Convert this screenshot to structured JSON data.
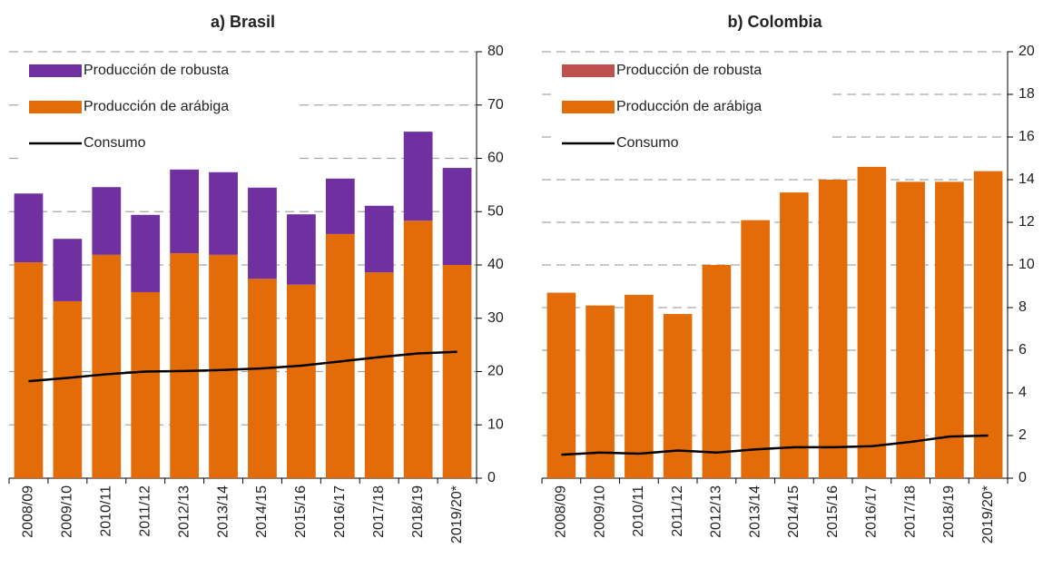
{
  "chart_data": [
    {
      "type": "bar",
      "title": "a) Brasil",
      "categories": [
        "2008/09",
        "2009/10",
        "2010/11",
        "2011/12",
        "2012/13",
        "2013/14",
        "2014/15",
        "2015/16",
        "2016/17",
        "2017/18",
        "2018/19",
        "2019/20*"
      ],
      "series": [
        {
          "name": "Producción de robusta",
          "color": "#7030a0",
          "values": [
            12.9,
            11.7,
            12.7,
            14.5,
            15.7,
            15.5,
            17.1,
            13.2,
            10.4,
            12.5,
            16.7,
            18.2
          ]
        },
        {
          "name": "Producción de arábiga",
          "color": "#e36c09",
          "values": [
            40.5,
            33.2,
            41.9,
            34.9,
            42.2,
            41.9,
            37.4,
            36.3,
            45.8,
            38.6,
            48.3,
            40.0
          ]
        },
        {
          "name": "Consumo",
          "type": "line",
          "color": "#000000",
          "values": [
            18.2,
            18.8,
            19.5,
            20.0,
            20.1,
            20.3,
            20.6,
            21.1,
            21.9,
            22.7,
            23.4,
            23.7
          ]
        }
      ],
      "ylim": [
        0,
        80
      ],
      "yticks": [
        0,
        10,
        20,
        30,
        40,
        50,
        60,
        70,
        80
      ],
      "grid": true,
      "legend": "top-left"
    },
    {
      "type": "bar",
      "title": "b) Colombia",
      "categories": [
        "2008/09",
        "2009/10",
        "2010/11",
        "2011/12",
        "2012/13",
        "2013/14",
        "2014/15",
        "2015/16",
        "2016/17",
        "2017/18",
        "2018/19",
        "2019/20*"
      ],
      "series": [
        {
          "name": "Producción de robusta",
          "color": "#c0504d",
          "values": [
            0,
            0,
            0,
            0,
            0,
            0,
            0,
            0,
            0,
            0,
            0,
            0
          ]
        },
        {
          "name": "Producción de arábiga",
          "color": "#e36c09",
          "values": [
            8.7,
            8.1,
            8.6,
            7.7,
            10.0,
            12.1,
            13.4,
            14.0,
            14.6,
            13.9,
            13.9,
            14.4
          ]
        },
        {
          "name": "Consumo",
          "type": "line",
          "color": "#000000",
          "values": [
            1.1,
            1.2,
            1.15,
            1.3,
            1.2,
            1.35,
            1.45,
            1.45,
            1.5,
            1.7,
            1.95,
            2.0
          ]
        }
      ],
      "ylim": [
        0,
        20
      ],
      "yticks": [
        0,
        2,
        4,
        6,
        8,
        10,
        12,
        14,
        16,
        18,
        20
      ],
      "grid": true,
      "legend": "top-left"
    }
  ]
}
